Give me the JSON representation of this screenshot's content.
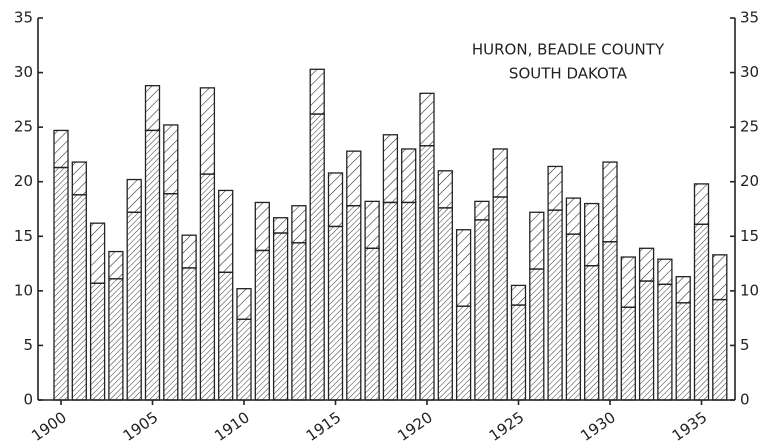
{
  "chart_data": {
    "type": "stacked_bar",
    "title": "HURON, BEADLE COUNTY",
    "subtitle": "SOUTH DAKOTA",
    "categories": [
      "1900",
      null,
      null,
      null,
      null,
      "1905",
      null,
      null,
      null,
      null,
      "1910",
      null,
      null,
      null,
      null,
      "1915",
      null,
      null,
      null,
      null,
      "1920",
      null,
      null,
      null,
      null,
      "1925",
      null,
      null,
      null,
      null,
      "1930",
      null,
      null,
      null,
      null,
      "1935",
      null
    ],
    "series": [
      {
        "color": "#222222",
        "values": [
          21.3,
          18.8,
          10.7,
          11.1,
          17.2,
          24.7,
          18.9,
          12.1,
          20.7,
          11.7,
          7.4,
          13.7,
          15.3,
          14.4,
          26.2,
          15.9,
          17.8,
          13.9,
          18.1,
          18.1,
          23.3,
          17.6,
          8.6,
          16.5,
          18.6,
          8.7,
          12.0,
          17.4,
          15.2,
          12.3,
          14.5,
          8.5,
          10.9,
          10.6,
          8.9,
          16.1,
          9.2
        ]
      },
      {
        "color": "#222222",
        "values": [
          3.4,
          3.0,
          5.5,
          2.5,
          3.0,
          4.1,
          6.3,
          3.0,
          7.9,
          7.5,
          2.8,
          4.4,
          1.4,
          3.4,
          4.1,
          4.9,
          5.0,
          4.3,
          6.2,
          4.9,
          4.8,
          3.4,
          7.0,
          1.7,
          4.4,
          1.8,
          5.2,
          4.0,
          3.3,
          5.7,
          7.3,
          4.6,
          3.0,
          2.3,
          2.4,
          3.7,
          4.1
        ]
      }
    ],
    "ylim": [
      0,
      35
    ],
    "yticks": [
      0,
      5,
      10,
      15,
      20,
      25,
      30,
      35
    ],
    "y2lim": [
      0,
      35
    ],
    "y2ticks": [
      0,
      5,
      10,
      15,
      20,
      25,
      30,
      35
    ],
    "grid": false
  }
}
